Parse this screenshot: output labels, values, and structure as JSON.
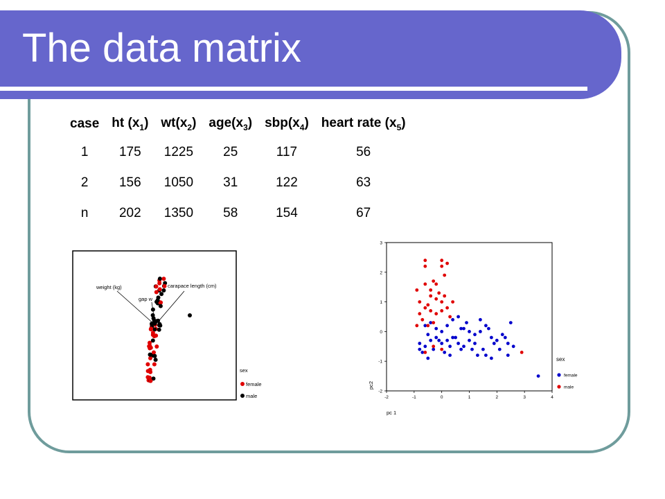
{
  "slide": {
    "title": "The data matrix"
  },
  "table": {
    "headers": [
      {
        "base": "case",
        "sub": "",
        "after": ""
      },
      {
        "base": "ht (x",
        "sub": "1",
        "after": ")"
      },
      {
        "base": "wt(x",
        "sub": "2",
        "after": ")"
      },
      {
        "base": "age(x",
        "sub": "3",
        "after": ")"
      },
      {
        "base": "sbp(x",
        "sub": "4",
        "after": ")"
      },
      {
        "base": "heart rate (x",
        "sub": "5",
        "after": ")"
      }
    ],
    "rows": [
      [
        "1",
        "175",
        "1225",
        "25",
        "117",
        "56"
      ],
      [
        "2",
        "156",
        "1050",
        "31",
        "122",
        "63"
      ],
      [
        "n",
        "202",
        "1350",
        "58",
        "154",
        "67"
      ]
    ]
  },
  "left_plot": {
    "labels": {
      "weight": "weight (kg)",
      "gap": "gap w",
      "carapace": "carapace length (cm)"
    },
    "legend": {
      "title": "sex",
      "female": "female",
      "male": "male"
    },
    "colors": {
      "female": "#e00000",
      "male": "#000000"
    }
  },
  "chart_data": {
    "type": "scatter",
    "xlabel": "pc 1",
    "ylabel": "pc2",
    "xlim": [
      -2,
      4
    ],
    "ylim": [
      -2,
      3
    ],
    "xticks": [
      "-2",
      "-1",
      "0",
      "1",
      "2",
      "3",
      "4"
    ],
    "yticks": [
      "-2",
      "-1",
      "0",
      "1",
      "2",
      "3"
    ],
    "legend_title": "sex",
    "series": [
      {
        "name": "female",
        "color": "#0000cc",
        "points": [
          [
            -0.8,
            -0.4
          ],
          [
            -0.6,
            -0.5
          ],
          [
            -0.4,
            -0.3
          ],
          [
            -0.2,
            -0.2
          ],
          [
            0.0,
            -0.4
          ],
          [
            0.2,
            -0.3
          ],
          [
            0.4,
            -0.2
          ],
          [
            0.6,
            -0.4
          ],
          [
            0.8,
            -0.5
          ],
          [
            1.0,
            -0.3
          ],
          [
            1.2,
            -0.1
          ],
          [
            1.4,
            0.0
          ],
          [
            1.6,
            0.2
          ],
          [
            1.8,
            -0.2
          ],
          [
            2.0,
            -0.3
          ],
          [
            2.2,
            -0.1
          ],
          [
            2.4,
            -0.4
          ],
          [
            2.6,
            -0.5
          ],
          [
            3.5,
            -1.5
          ],
          [
            -0.7,
            -0.7
          ],
          [
            -0.5,
            -0.9
          ],
          [
            -0.3,
            -0.6
          ],
          [
            0.1,
            -0.7
          ],
          [
            0.3,
            -0.5
          ],
          [
            0.5,
            -0.2
          ],
          [
            0.7,
            0.1
          ],
          [
            0.9,
            0.3
          ],
          [
            1.1,
            -0.6
          ],
          [
            1.3,
            -0.8
          ],
          [
            1.5,
            -0.6
          ],
          [
            1.7,
            0.1
          ],
          [
            1.9,
            -0.4
          ],
          [
            2.1,
            -0.6
          ],
          [
            2.3,
            -0.2
          ],
          [
            2.5,
            0.3
          ],
          [
            -0.6,
            0.2
          ],
          [
            -0.4,
            0.3
          ],
          [
            -0.2,
            0.1
          ],
          [
            0.0,
            0.0
          ],
          [
            0.2,
            0.2
          ],
          [
            0.4,
            0.4
          ],
          [
            0.6,
            0.5
          ],
          [
            0.8,
            0.1
          ],
          [
            1.0,
            0.0
          ],
          [
            1.2,
            -0.4
          ],
          [
            1.6,
            -0.8
          ],
          [
            1.8,
            -0.9
          ],
          [
            2.4,
            -0.8
          ],
          [
            -0.8,
            -0.6
          ],
          [
            -0.5,
            -0.1
          ],
          [
            -0.1,
            -0.3
          ],
          [
            0.3,
            -0.8
          ],
          [
            0.7,
            -0.6
          ],
          [
            1.4,
            0.4
          ]
        ]
      },
      {
        "name": "male",
        "color": "#e00000",
        "points": [
          [
            -0.6,
            2.4
          ],
          [
            -0.6,
            2.2
          ],
          [
            -0.6,
            1.6
          ],
          [
            0.0,
            2.4
          ],
          [
            0.0,
            2.2
          ],
          [
            0.2,
            2.3
          ],
          [
            0.1,
            1.9
          ],
          [
            -0.2,
            1.6
          ],
          [
            -0.4,
            1.4
          ],
          [
            -0.9,
            1.4
          ],
          [
            -0.4,
            1.2
          ],
          [
            -0.2,
            1.1
          ],
          [
            0.0,
            1.0
          ],
          [
            0.4,
            1.0
          ],
          [
            -0.8,
            1.0
          ],
          [
            -0.6,
            0.8
          ],
          [
            -0.4,
            0.7
          ],
          [
            -0.2,
            0.6
          ],
          [
            0.0,
            0.7
          ],
          [
            -0.8,
            0.6
          ],
          [
            -0.7,
            0.4
          ],
          [
            -0.5,
            0.2
          ],
          [
            -0.9,
            0.2
          ],
          [
            0.3,
            0.5
          ],
          [
            -0.3,
            0.3
          ],
          [
            -0.1,
            1.3
          ],
          [
            -0.5,
            0.9
          ],
          [
            0.2,
            0.8
          ],
          [
            -0.3,
            -0.5
          ],
          [
            -0.6,
            -0.7
          ],
          [
            0.0,
            -0.6
          ],
          [
            2.9,
            -0.7
          ],
          [
            -0.3,
            1.7
          ],
          [
            0.1,
            1.2
          ]
        ]
      }
    ]
  }
}
